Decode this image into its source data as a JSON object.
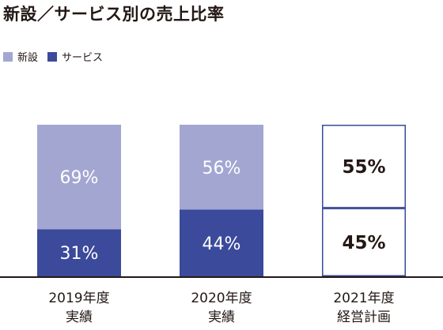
{
  "chart_data": {
    "type": "bar",
    "stacked": true,
    "percent": true,
    "title": "新設／サービス別の売上比率",
    "categories": [
      {
        "line1": "2019年度",
        "line2": "実績",
        "planned": false
      },
      {
        "line1": "2020年度",
        "line2": "実績",
        "planned": false
      },
      {
        "line1": "2021年度",
        "line2": "経営計画",
        "planned": true
      }
    ],
    "series": [
      {
        "name": "サービス",
        "values": [
          31,
          44,
          45
        ],
        "labels": [
          "31%",
          "44%",
          "45%"
        ],
        "color": "#3b4a9a"
      },
      {
        "name": "新設",
        "values": [
          69,
          56,
          55
        ],
        "labels": [
          "69%",
          "56%",
          "55%"
        ],
        "color": "#a2a6d1"
      }
    ],
    "planned_style": {
      "fill": "#ffffff",
      "stroke": "#3b4a9a",
      "label_color": "#231815"
    },
    "ylim": [
      0,
      100
    ],
    "legend_position": "top-left"
  }
}
